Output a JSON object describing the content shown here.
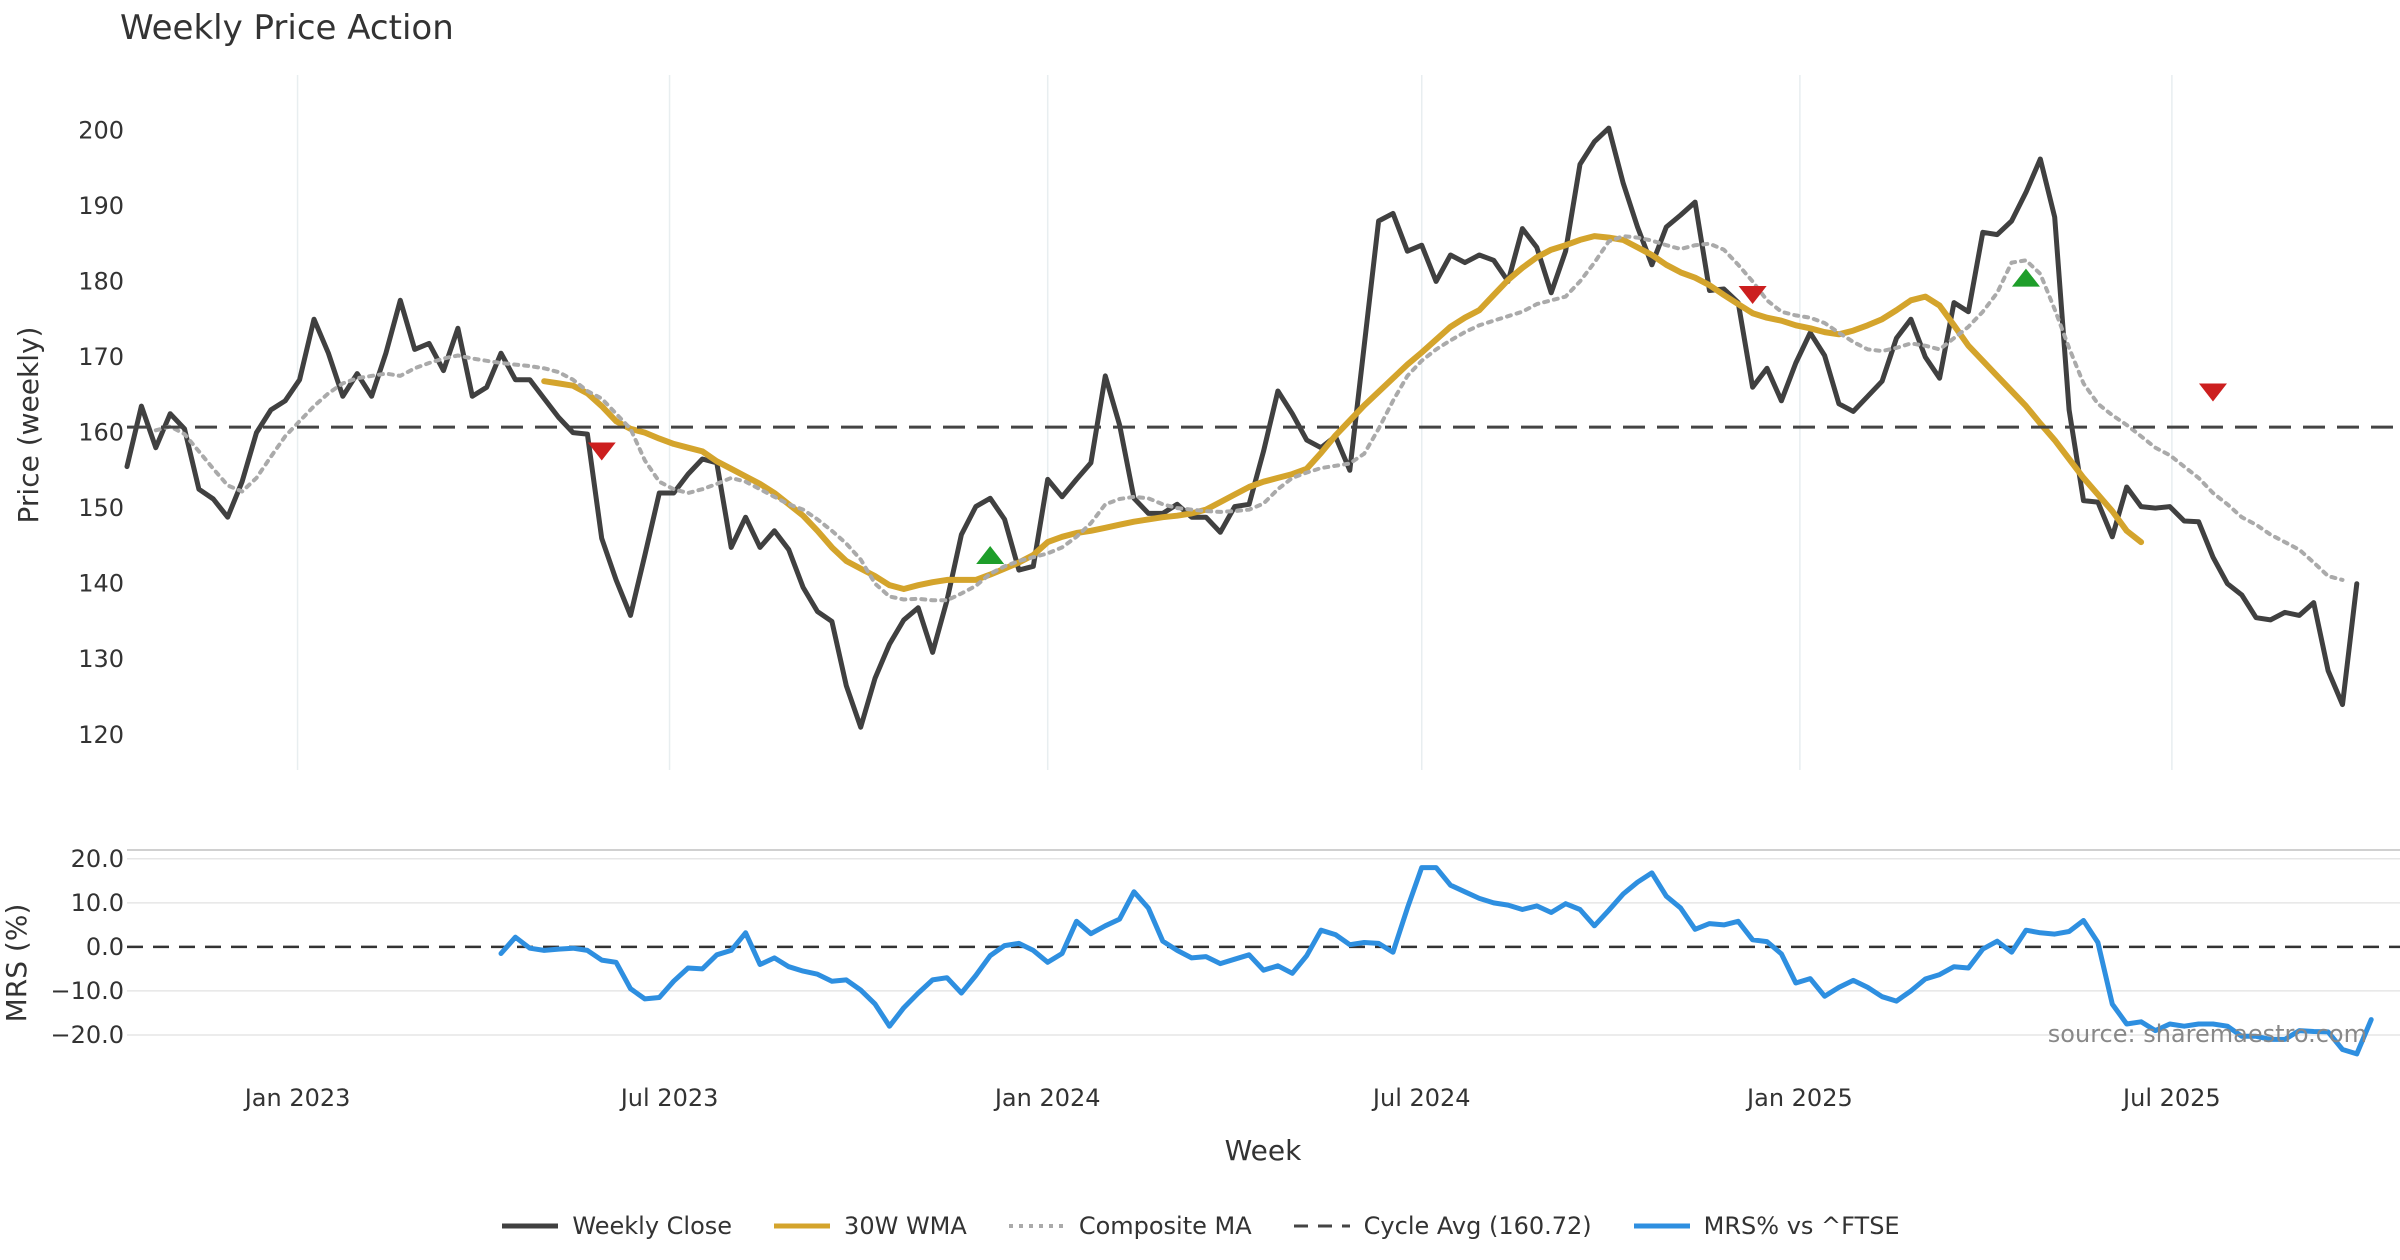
{
  "chart_data": [
    {
      "panel": "price",
      "type": "line",
      "title": "Weekly Price Action",
      "xlabel": "Week",
      "ylabel": "Price (weekly)",
      "xlim": [
        "2022-10-10",
        "2025-10-20"
      ],
      "ylim": [
        116,
        206
      ],
      "yticks": [
        120,
        130,
        140,
        150,
        160,
        170,
        180,
        190,
        200
      ],
      "xticks": [
        {
          "date": "2023-01-01",
          "label": "Jan 2023"
        },
        {
          "date": "2023-07-01",
          "label": "Jul 2023"
        },
        {
          "date": "2024-01-01",
          "label": "Jan 2024"
        },
        {
          "date": "2024-07-01",
          "label": "Jul 2024"
        },
        {
          "date": "2025-01-01",
          "label": "Jan 2025"
        },
        {
          "date": "2025-07-01",
          "label": "Jul 2025"
        }
      ],
      "grid": "vertical",
      "start_date": "2022-10-10",
      "interval_days": 7,
      "series": [
        {
          "name": "Weekly Close",
          "color": "#404040",
          "style": "solid",
          "values": [
            155.5,
            163.5,
            158.0,
            162.5,
            160.5,
            152.5,
            151.2,
            148.8,
            153.5,
            160.0,
            163.0,
            164.2,
            167.0,
            175.0,
            170.5,
            164.8,
            167.8,
            164.8,
            170.5,
            177.5,
            171.0,
            171.8,
            168.2,
            173.8,
            164.8,
            166.0,
            170.5,
            167.0,
            167.0,
            164.5,
            162.0,
            160.0,
            159.8,
            146.0,
            140.5,
            135.8,
            143.8,
            152.0,
            152.0,
            154.5,
            156.5,
            156.0,
            144.8,
            148.8,
            144.8,
            147.0,
            144.5,
            139.5,
            136.3,
            135.0,
            126.5,
            121.0,
            127.5,
            132.0,
            135.2,
            136.8,
            130.9,
            137.8,
            146.5,
            150.2,
            151.3,
            148.5,
            141.8,
            142.3,
            153.8,
            151.5,
            153.8,
            156.0,
            167.5,
            161.0,
            151.3,
            149.3,
            149.3,
            150.5,
            148.8,
            148.8,
            146.8,
            150.2,
            150.5,
            157.5,
            165.5,
            162.5,
            159.0,
            158.0,
            159.5,
            155.0,
            171.5,
            188.0,
            189.0,
            184.0,
            184.8,
            180.0,
            183.5,
            182.5,
            183.5,
            182.8,
            180.0,
            187.0,
            184.5,
            178.5,
            184.0,
            195.5,
            198.5,
            200.3,
            193.0,
            187.2,
            182.2,
            187.2,
            188.8,
            190.5,
            178.8,
            179.0,
            177.2,
            166.0,
            168.5,
            164.2,
            169.2,
            173.2,
            170.2,
            163.8,
            162.8,
            164.8,
            166.8,
            172.5,
            175.0,
            170.0,
            167.2,
            177.2,
            176.0,
            186.5,
            186.2,
            188.0,
            191.8,
            196.2,
            188.5,
            163.0,
            151.0,
            150.8,
            146.2,
            152.8,
            150.2,
            150.0,
            150.2,
            148.3,
            148.2,
            143.5,
            140.0,
            138.5,
            135.5,
            135.2,
            136.2,
            135.8,
            137.5,
            128.5,
            124.0,
            140.0
          ]
        },
        {
          "name": "30W WMA",
          "color": "#D4A42C",
          "style": "solid",
          "start_index": 29,
          "values": [
            166.8,
            166.5,
            166.2,
            165.2,
            163.5,
            161.5,
            160.5,
            160.0,
            159.2,
            158.5,
            158.0,
            157.5,
            156.2,
            155.2,
            154.2,
            153.2,
            152.0,
            150.5,
            149.0,
            147.0,
            144.8,
            143.0,
            142.0,
            141.0,
            139.8,
            139.3,
            139.8,
            140.2,
            140.5,
            140.5,
            140.5,
            141.2,
            142.0,
            142.8,
            143.8,
            145.5,
            146.2,
            146.7,
            147.0,
            147.4,
            147.8,
            148.2,
            148.5,
            148.8,
            149.0,
            149.3,
            149.8,
            150.8,
            151.8,
            152.8,
            153.5,
            154.0,
            154.5,
            155.2,
            157.3,
            159.6,
            161.6,
            163.6,
            165.4,
            167.2,
            169.0,
            170.6,
            172.3,
            174.0,
            175.2,
            176.2,
            178.2,
            180.2,
            181.8,
            183.2,
            184.2,
            184.8,
            185.5,
            186.0,
            185.8,
            185.5,
            184.5,
            183.5,
            182.2,
            181.2,
            180.5,
            179.5,
            178.2,
            177.0,
            175.8,
            175.2,
            174.8,
            174.2,
            173.8,
            173.3,
            173.0,
            173.5,
            174.2,
            175.0,
            176.2,
            177.5,
            178.0,
            176.8,
            174.2,
            171.5,
            169.5,
            167.5,
            165.5,
            163.5,
            161.2,
            159.0,
            156.5,
            154.0,
            151.8,
            149.6,
            147.0,
            145.5
          ]
        },
        {
          "name": "Composite MA",
          "color": "#AAAAAA",
          "style": "dotted",
          "start_index": 2,
          "values": [
            160.3,
            160.8,
            159.8,
            157.5,
            155.2,
            153.0,
            152.2,
            154.0,
            156.8,
            159.5,
            161.5,
            163.5,
            165.2,
            166.5,
            167.2,
            167.5,
            167.8,
            167.5,
            168.5,
            169.2,
            169.8,
            170.2,
            169.8,
            169.5,
            169.2,
            169.0,
            168.8,
            168.5,
            168.0,
            167.0,
            165.5,
            164.5,
            162.5,
            160.5,
            156.3,
            153.5,
            152.5,
            152.0,
            152.5,
            153.2,
            154.0,
            153.5,
            152.5,
            151.5,
            150.5,
            149.8,
            148.5,
            147.0,
            145.3,
            143.2,
            140.0,
            138.3,
            137.9,
            138.0,
            137.8,
            137.8,
            138.7,
            139.7,
            141.3,
            142.3,
            143.0,
            143.5,
            144.0,
            144.8,
            146.2,
            148.0,
            150.5,
            151.2,
            151.5,
            151.3,
            150.5,
            150.0,
            149.8,
            149.6,
            149.5,
            149.6,
            149.8,
            150.6,
            152.5,
            154.0,
            154.7,
            155.3,
            155.6,
            155.9,
            157.2,
            160.5,
            164.2,
            167.5,
            169.5,
            171.0,
            172.2,
            173.3,
            174.2,
            174.8,
            175.4,
            176.0,
            177.0,
            177.5,
            178.0,
            180.0,
            182.5,
            185.3,
            186.0,
            185.8,
            185.4,
            184.8,
            184.3,
            184.8,
            185.0,
            184.2,
            182.2,
            180.0,
            177.5,
            176.0,
            175.5,
            175.2,
            174.5,
            173.2,
            172.0,
            171.0,
            170.8,
            171.2,
            171.8,
            171.5,
            171.0,
            172.5,
            174.0,
            176.0,
            178.5,
            182.5,
            182.8,
            181.0,
            176.3,
            171.2,
            166.5,
            163.8,
            162.3,
            161.0,
            159.5,
            158.0,
            157.0,
            155.5,
            154.0,
            152.0,
            150.5,
            148.8,
            147.8,
            146.5,
            145.5,
            144.5,
            142.8,
            141.0,
            140.5
          ]
        },
        {
          "name": "Cycle Avg (160.72)",
          "color": "#444444",
          "style": "dashed",
          "value": 160.72
        }
      ],
      "markers": [
        {
          "kind": "sell",
          "index": 33,
          "value": 157.5
        },
        {
          "kind": "buy",
          "index": 60,
          "value": 143.8
        },
        {
          "kind": "sell",
          "index": 113,
          "value": 178.2
        },
        {
          "kind": "buy",
          "index": 132,
          "value": 180.5
        },
        {
          "kind": "sell",
          "index": 145,
          "value": 165.3
        }
      ]
    },
    {
      "panel": "mrs",
      "type": "line",
      "ylabel": "MRS (%)",
      "ylim": [
        -25,
        22
      ],
      "yticks": [
        20.0,
        10.0,
        0.0,
        -10.0,
        -20.0
      ],
      "ytick_labels": [
        "20.0",
        "10.0",
        "0.0",
        "−10.0",
        "−20.0"
      ],
      "zero_line": 0,
      "series": [
        {
          "name": "MRS% vs ^FTSE",
          "color": "#2E8FE0",
          "style": "solid",
          "start_index": 26,
          "values": [
            -1.5,
            2.2,
            -0.3,
            -0.8,
            -0.5,
            -0.3,
            -0.8,
            -3.0,
            -3.5,
            -9.5,
            -11.8,
            -11.5,
            -7.8,
            -4.8,
            -5.0,
            -1.8,
            -0.8,
            3.2,
            -4.0,
            -2.5,
            -4.5,
            -5.5,
            -6.2,
            -7.8,
            -7.5,
            -9.8,
            -13.0,
            -18.0,
            -13.8,
            -10.5,
            -7.5,
            -7.0,
            -10.5,
            -6.5,
            -2.0,
            0.3,
            0.8,
            -0.8,
            -3.5,
            -1.5,
            5.8,
            3.0,
            4.8,
            6.3,
            12.5,
            8.8,
            1.3,
            -0.8,
            -2.5,
            -2.2,
            -3.8,
            -2.8,
            -1.8,
            -5.3,
            -4.3,
            -6.0,
            -2.0,
            3.8,
            2.8,
            0.5,
            1.0,
            0.8,
            -1.2,
            8.8,
            18.0,
            18.0,
            14.0,
            12.5,
            11.0,
            10.0,
            9.5,
            8.5,
            9.3,
            7.8,
            9.8,
            8.5,
            4.8,
            8.3,
            12.0,
            14.7,
            16.8,
            11.5,
            8.8,
            4.0,
            5.3,
            5.0,
            5.8,
            1.6,
            1.2,
            -1.6,
            -8.2,
            -7.2,
            -11.2,
            -9.2,
            -7.6,
            -9.2,
            -11.3,
            -12.3,
            -10.0,
            -7.3,
            -6.3,
            -4.5,
            -4.8,
            -0.5,
            1.3,
            -1.2,
            3.8,
            3.2,
            2.9,
            3.5,
            6.0,
            1.0,
            -13.0,
            -17.5,
            -17.0,
            -19.0,
            -17.5,
            -18.0,
            -17.5,
            -17.5,
            -18.0,
            -20.3,
            -20.3,
            -21.0,
            -21.0,
            -19.0,
            -19.2,
            -19.3,
            -23.3,
            -24.3,
            -16.5
          ]
        }
      ]
    }
  ],
  "source": "source: sharemaestro.com"
}
